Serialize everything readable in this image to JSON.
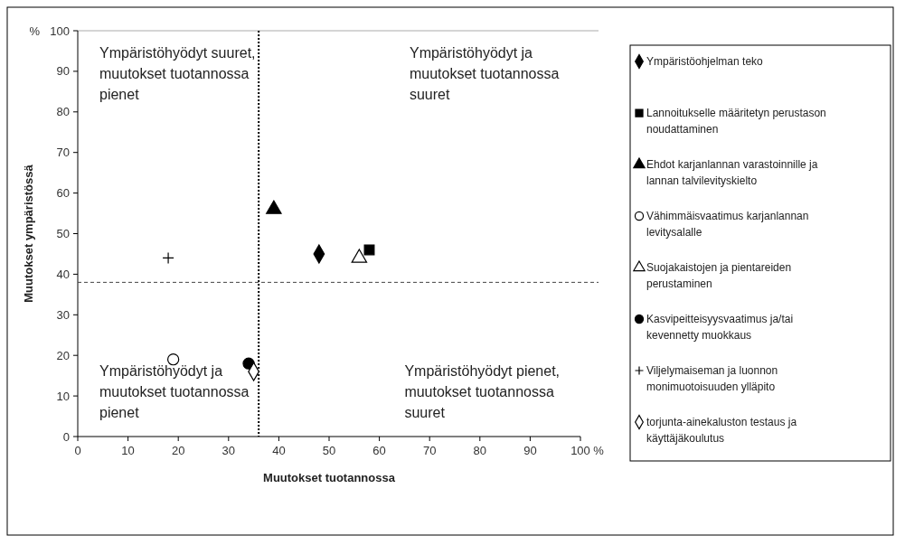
{
  "chart_data": {
    "type": "scatter",
    "xlabel": "Muutokset tuotannossa",
    "ylabel": "Muutokset ympäristössä",
    "xlim": [
      0,
      100
    ],
    "ylim": [
      0,
      100
    ],
    "xticks": [
      0,
      10,
      20,
      30,
      40,
      50,
      60,
      70,
      80,
      90,
      100
    ],
    "yticks": [
      0,
      10,
      20,
      30,
      40,
      50,
      60,
      70,
      80,
      90,
      100
    ],
    "grid": false,
    "legend": "right",
    "series": [
      {
        "name": "Ympäristöohjelman teko",
        "color": "#000000",
        "marker": "diamond",
        "x": [
          48
        ],
        "values": [
          45
        ]
      },
      {
        "name": "Lannoitukselle määritetyn perustason noudattaminen",
        "color": "#000000",
        "marker": "square",
        "x": [
          58
        ],
        "values": [
          46
        ]
      },
      {
        "name": "Ehdot karjanlannan varastoinnille ja lannan talvilevityskielto",
        "color": "#000000",
        "marker": "triangle",
        "x": [
          39
        ],
        "values": [
          56
        ]
      },
      {
        "name": "Vähimmäisvaatimus karjanlannan levitysalalle",
        "color": "#ffffff",
        "marker": "circle",
        "x": [
          19
        ],
        "values": [
          19
        ]
      },
      {
        "name": "Suojakaistojen ja pientareiden perustaminen",
        "color": "#ffffff",
        "marker": "triangle",
        "x": [
          56
        ],
        "values": [
          44
        ]
      },
      {
        "name": "Kasvipeitteisyysvaatimus ja/tai kevennetty muokkaus",
        "color": "#000000",
        "marker": "circle",
        "x": [
          34
        ],
        "values": [
          18
        ]
      },
      {
        "name": "Viljelymaiseman ja luonnon monimuotoisuuden ylläpito",
        "color": "#000000",
        "marker": "cross",
        "x": [
          18
        ],
        "values": [
          44
        ]
      },
      {
        "name": "torjunta-ainekaluston testaus ja käyttäjäkoulutus",
        "color": "#ffffff",
        "marker": "diamond",
        "x": [
          35
        ],
        "values": [
          16
        ]
      }
    ],
    "ref_lines": [
      {
        "axis": "x",
        "value": 36,
        "line_style": "dotted"
      },
      {
        "axis": "y",
        "value": 38,
        "line_style": "dashed"
      }
    ],
    "annotations": [
      "Ympäristöhyödyt suuret, muutokset tuotannossa pienet",
      "Ympäristöhyödyt ja muutokset tuotannossa suuret",
      "Ympäristöhyödyt ja muutokset tuotannossa pienet",
      "Ympäristöhyödyt pienet, muutokset tuotannossa suuret",
      "%",
      "%"
    ]
  }
}
